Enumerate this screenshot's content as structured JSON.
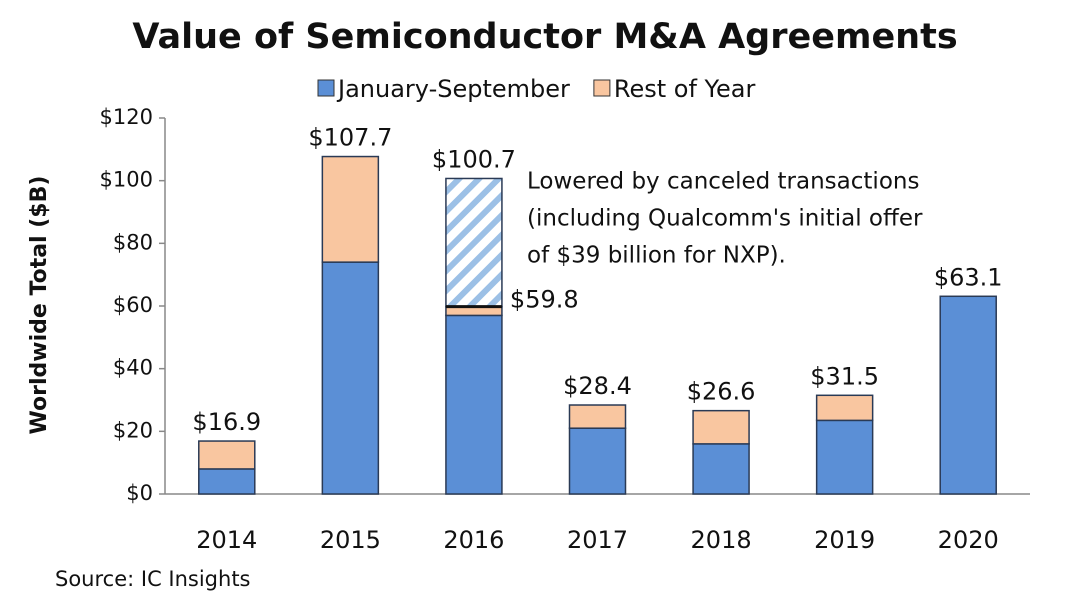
{
  "chart_data": {
    "type": "stacked-bar",
    "title": "Value of Semiconductor M&A Agreements",
    "y_label": "Worldwide Total ($B)",
    "source": "Source: IC Insights",
    "categories": [
      "2014",
      "2015",
      "2016",
      "2017",
      "2018",
      "2019",
      "2020"
    ],
    "series": [
      {
        "name": "January-September",
        "color": "#5b8fd6",
        "values": [
          8,
          74,
          57,
          21,
          16,
          23.5,
          63.1
        ]
      },
      {
        "name": "Rest of Year",
        "color": "#f9c6a0",
        "values": [
          8.9,
          33.7,
          2.8,
          7.4,
          10.6,
          8,
          null
        ]
      },
      {
        "color": "#9cc0e6",
        "hatch": true,
        "values": [
          null,
          null,
          40.9,
          null,
          null,
          null,
          null
        ]
      }
    ],
    "total_labels": {
      "values": [
        16.9,
        107.7,
        100.7,
        28.4,
        26.6,
        31.5,
        63.1
      ],
      "value_labels": [
        "$16.9",
        "$107.7",
        "$100.7",
        "$28.4",
        "$26.6",
        "$31.5",
        "$63.1"
      ]
    },
    "net_labels": {
      "values": [
        null,
        null,
        59.8,
        null,
        null,
        null,
        null
      ],
      "value_labels": [
        null,
        null,
        "$59.8",
        null,
        null,
        null,
        null
      ]
    },
    "annotation": [
      "Lowered by canceled transactions",
      "(including Qualcomm's initial offer",
      "of $39 billion for NXP)."
    ],
    "ylim": [
      0,
      120
    ],
    "yticks": [
      {
        "value": 0,
        "label": "$0"
      },
      {
        "value": 20,
        "label": "$20"
      },
      {
        "value": 40,
        "label": "$40"
      },
      {
        "value": 60,
        "label": "$60"
      },
      {
        "value": 80,
        "label": "$80"
      },
      {
        "value": 100,
        "label": "$100"
      },
      {
        "value": 120,
        "label": "$120"
      }
    ],
    "grid": false
  }
}
